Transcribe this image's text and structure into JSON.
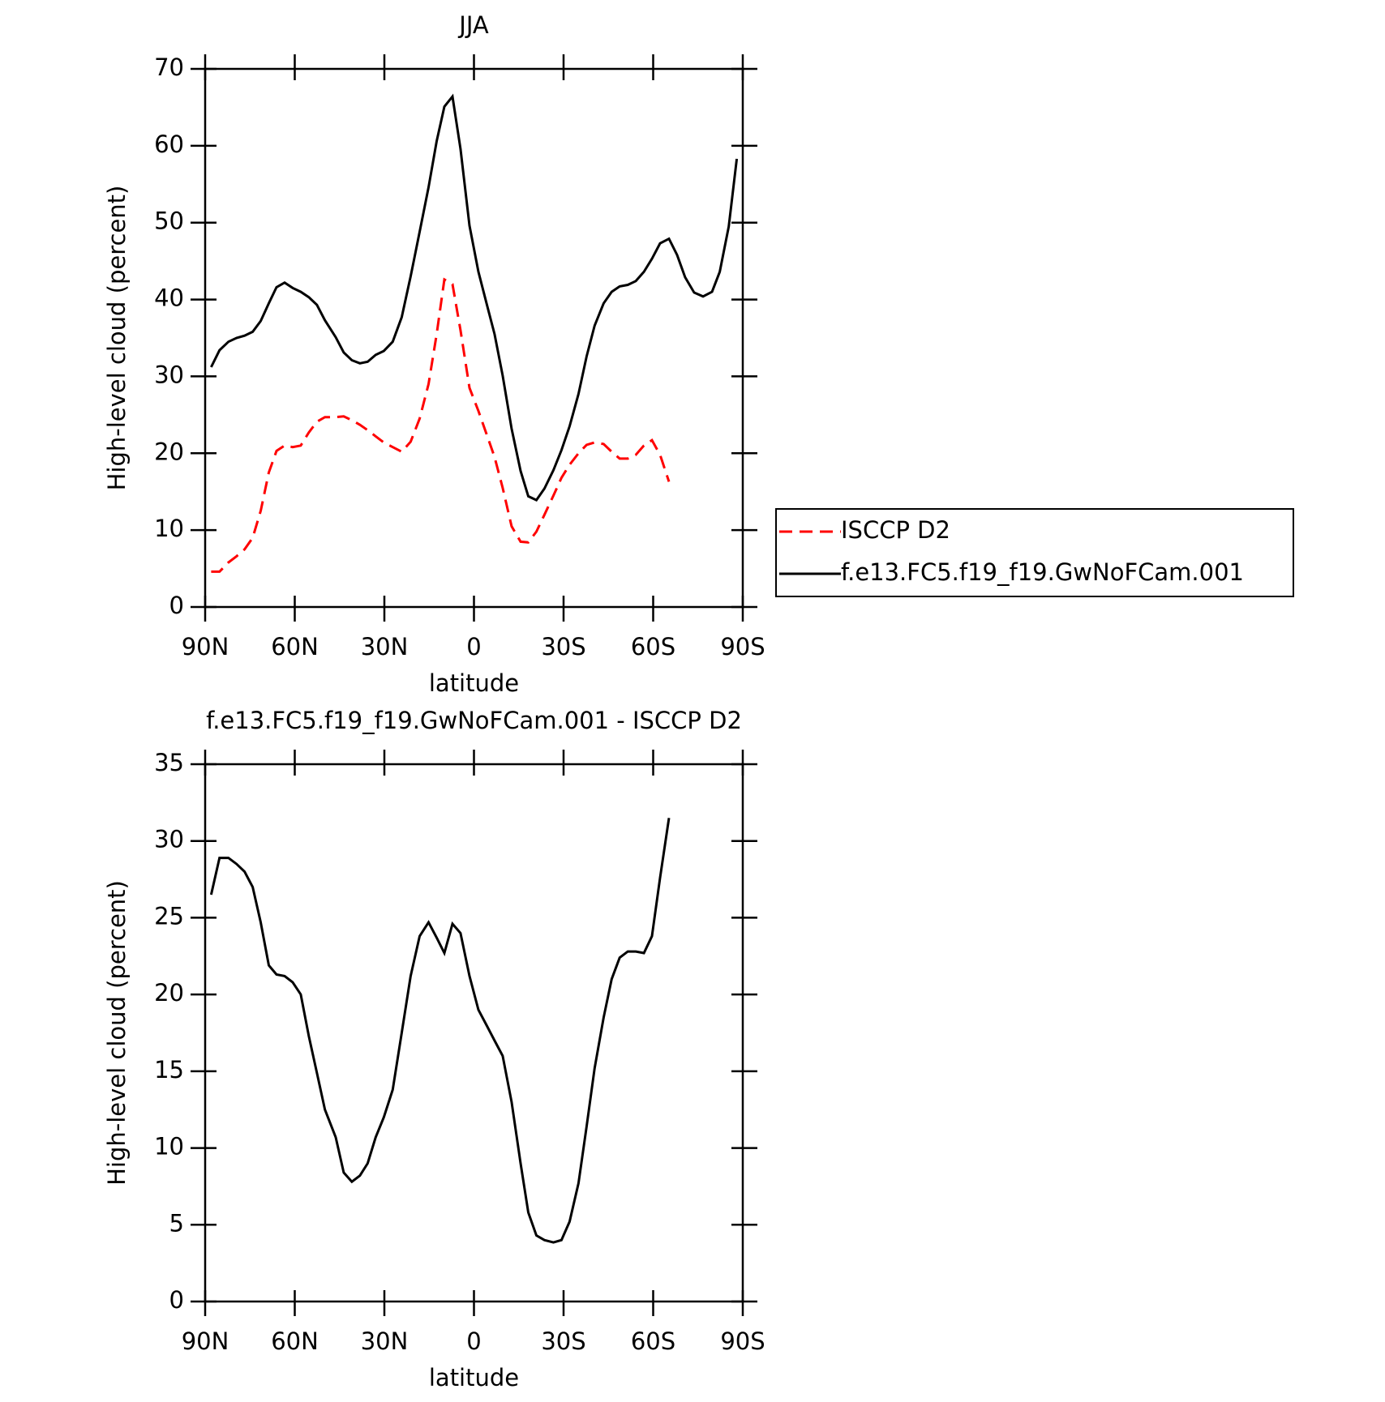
{
  "chart_data": [
    {
      "type": "line",
      "title": "JJA",
      "x_label": "latitude",
      "y_label": "High-level cloud (percent)",
      "x": [
        88,
        85.2,
        82.2,
        79.5,
        76.8,
        74.1,
        71.4,
        68.7,
        66.1,
        63.4,
        60.7,
        58.0,
        55.3,
        52.6,
        49.9,
        46.3,
        43.6,
        40.9,
        38.2,
        35.6,
        32.9,
        30.2,
        27.2,
        24.2,
        21.2,
        18.2,
        15.2,
        12.5,
        9.9,
        7.2,
        4.5,
        1.5,
        -1.5,
        -4.2,
        -6.9,
        -9.6,
        -12.6,
        -15.6,
        -18.2,
        -20.9,
        -23.6,
        -26.6,
        -29.3,
        -32,
        -35,
        -37.7,
        -40.4,
        -43.4,
        -46.1,
        -48.8,
        -51.5,
        -54.2,
        -56.9,
        -59.6,
        -62.3,
        -65.3,
        -68,
        -70.7,
        -73.7,
        -76.7,
        -79.7,
        -82.3,
        -85.3,
        -88
      ],
      "series": [
        {
          "name": "ISCCP D2",
          "color": "#ff0000",
          "dash": true,
          "values": [
            4.6,
            4.6,
            5.8,
            6.6,
            7.5,
            9.0,
            12.5,
            17.5,
            20.3,
            21.0,
            20.8,
            21.0,
            22.7,
            24.1,
            24.7,
            24.7,
            24.8,
            24.3,
            23.7,
            23.0,
            22.2,
            21.4,
            20.8,
            20.2,
            21.5,
            24.5,
            29.0,
            35.5,
            42.6,
            42.0,
            36,
            28.5,
            25.5,
            22.5,
            19.5,
            15.5,
            10.5,
            8.5,
            8.4,
            9.8,
            12,
            14.5,
            16.8,
            18.5,
            20,
            21.1,
            21.4,
            21.2,
            20.2,
            19.3,
            19.3,
            19.8,
            21.0,
            21.7,
            19.8,
            16.3,
            null,
            null,
            null,
            null,
            null,
            null,
            null,
            null
          ]
        },
        {
          "name": "f.e13.FC5.f19_f19.GwNoFCam.001",
          "color": "#000000",
          "dash": false,
          "values": [
            31.2,
            33.4,
            34.5,
            35.0,
            35.3,
            35.8,
            37.2,
            39.5,
            41.6,
            42.2,
            41.5,
            41.0,
            40.3,
            39.3,
            37.3,
            35.1,
            33.1,
            32.1,
            31.7,
            31.9,
            32.8,
            33.3,
            34.5,
            37.7,
            43.0,
            48.8,
            54.6,
            60.6,
            65.1,
            66.4,
            59.6,
            49.6,
            43.6,
            39.5,
            35.5,
            30.1,
            23.2,
            17.7,
            14.4,
            13.9,
            15.4,
            17.8,
            20.4,
            23.5,
            27.7,
            32.6,
            36.6,
            39.5,
            41.0,
            41.7,
            41.9,
            42.4,
            43.6,
            45.3,
            47.3,
            47.9,
            45.8,
            42.9,
            40.9,
            40.4,
            41.0,
            43.6,
            49.5,
            58.3
          ]
        }
      ],
      "xlim": [
        90,
        -90
      ],
      "xticks": [
        {
          "value": 90,
          "label": "90N"
        },
        {
          "value": 60,
          "label": "60N"
        },
        {
          "value": 30,
          "label": "30N"
        },
        0,
        {
          "value": -30,
          "label": "30S"
        },
        {
          "value": -60,
          "label": "60S"
        },
        {
          "value": -90,
          "label": "90S"
        }
      ],
      "ylim": [
        0,
        70
      ],
      "yticks": [
        0,
        10,
        20,
        30,
        40,
        50,
        60,
        70
      ],
      "legend": "right"
    },
    {
      "type": "line",
      "title": "f.e13.FC5.f19_f19.GwNoFCam.001 - ISCCP D2",
      "x_label": "latitude",
      "y_label": "High-level cloud (percent)",
      "x": [
        88,
        85.2,
        82.2,
        79.5,
        76.8,
        74.1,
        71.4,
        68.7,
        66.1,
        63.4,
        60.7,
        58.0,
        55.3,
        52.6,
        49.9,
        46.3,
        43.6,
        40.9,
        38.2,
        35.6,
        32.9,
        30.2,
        27.2,
        24.2,
        21.2,
        18.2,
        15.2,
        12.5,
        9.9,
        7.2,
        4.5,
        1.5,
        -1.5,
        -4.2,
        -6.9,
        -9.6,
        -12.6,
        -15.6,
        -18.2,
        -20.9,
        -23.6,
        -26.6,
        -29.3,
        -32,
        -35,
        -37.7,
        -40.4,
        -43.4,
        -46.1,
        -48.8,
        -51.5,
        -54.2,
        -56.9,
        -59.6,
        -62.3,
        -65.3,
        -68,
        -70.7,
        -73.7,
        -76.7,
        -79.7,
        -82.3,
        -85.3,
        -88
      ],
      "series": [
        {
          "color": "#000000",
          "dash": false,
          "values": [
            26.5,
            28.9,
            28.9,
            28.5,
            28.0,
            27.0,
            24.7,
            21.9,
            21.3,
            21.2,
            20.8,
            20.0,
            17.3,
            14.9,
            12.5,
            10.7,
            8.4,
            7.8,
            8.2,
            9.0,
            10.7,
            12.0,
            13.8,
            17.5,
            21.2,
            23.8,
            24.7,
            23.7,
            22.7,
            24.6,
            24.0,
            21.2,
            19.0,
            18.0,
            17.0,
            16.0,
            13.0,
            9.0,
            5.8,
            4.3,
            4.0,
            3.85,
            4.0,
            5.2,
            7.7,
            11.4,
            15.2,
            18.5,
            21.0,
            22.4,
            22.8,
            22.8,
            22.7,
            23.8,
            27.6,
            31.5,
            null,
            null,
            null,
            null,
            null,
            null,
            null,
            null
          ]
        }
      ],
      "xlim": [
        90,
        -90
      ],
      "xticks": [
        {
          "value": 90,
          "label": "90N"
        },
        {
          "value": 60,
          "label": "60N"
        },
        {
          "value": 30,
          "label": "30N"
        },
        0,
        {
          "value": -30,
          "label": "30S"
        },
        {
          "value": -60,
          "label": "60S"
        },
        {
          "value": -90,
          "label": "90S"
        }
      ],
      "ylim": [
        0,
        35
      ],
      "yticks": [
        0,
        5,
        10,
        15,
        20,
        25,
        30,
        35
      ]
    }
  ]
}
